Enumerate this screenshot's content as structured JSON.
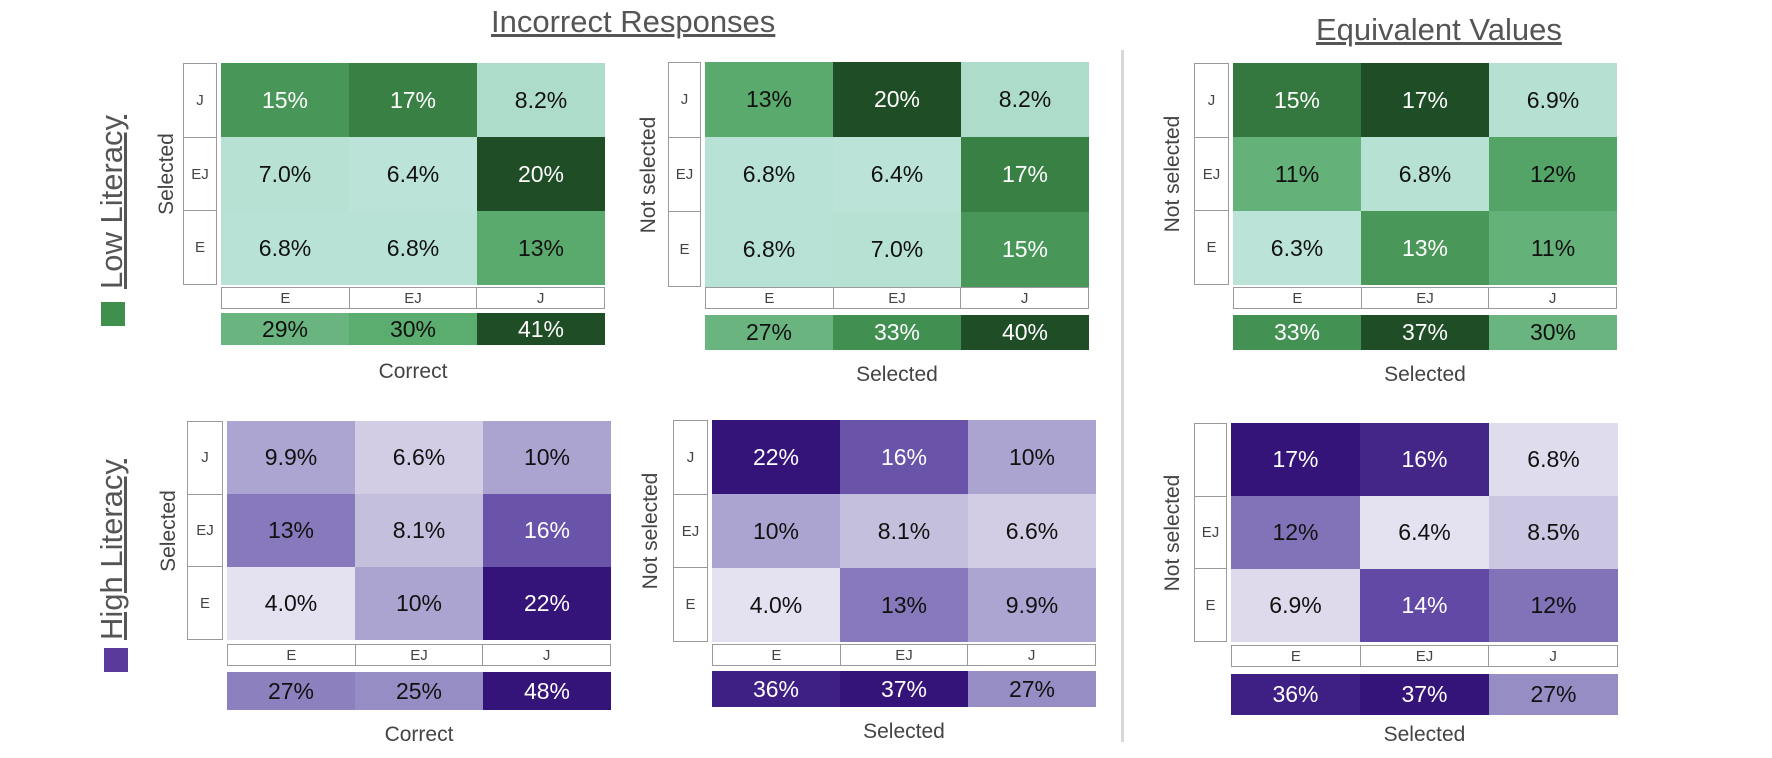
{
  "titles": {
    "incorrect": "Incorrect Responses",
    "equivalent": "Equivalent Values"
  },
  "row_groups": {
    "low": {
      "label": "Low Literacy",
      "color": "#3f8f4d"
    },
    "high": {
      "label": "High Literacy",
      "color": "#5a3a9a"
    }
  },
  "chart_data": [
    {
      "type": "heatmap",
      "id": "low-incorrect-a",
      "group": "Low Literacy",
      "section": "Incorrect Responses",
      "palette": "green",
      "ylabel": "Selected",
      "xlabel": "Correct",
      "rows": [
        "J",
        "EJ",
        "E"
      ],
      "cols": [
        "E",
        "EJ",
        "J"
      ],
      "values": [
        [
          15,
          17,
          8.2
        ],
        [
          7.0,
          6.4,
          20
        ],
        [
          6.8,
          6.8,
          13
        ]
      ],
      "labels": [
        [
          "15%",
          "17%",
          "8.2%"
        ],
        [
          "7.0%",
          "6.4%",
          "20%"
        ],
        [
          "6.8%",
          "6.8%",
          "13%"
        ]
      ],
      "totals": [
        29,
        30,
        41
      ],
      "total_labels": [
        "29%",
        "30%",
        "41%"
      ]
    },
    {
      "type": "heatmap",
      "id": "low-incorrect-b",
      "group": "Low Literacy",
      "section": "Incorrect Responses",
      "palette": "green",
      "ylabel": "Not selected",
      "xlabel": "Selected",
      "rows": [
        "J",
        "EJ",
        "E"
      ],
      "cols": [
        "E",
        "EJ",
        "J"
      ],
      "values": [
        [
          13,
          20,
          8.2
        ],
        [
          6.8,
          6.4,
          17
        ],
        [
          6.8,
          7.0,
          15
        ]
      ],
      "labels": [
        [
          "13%",
          "20%",
          "8.2%"
        ],
        [
          "6.8%",
          "6.4%",
          "17%"
        ],
        [
          "6.8%",
          "7.0%",
          "15%"
        ]
      ],
      "totals": [
        27,
        33,
        40
      ],
      "total_labels": [
        "27%",
        "33%",
        "40%"
      ]
    },
    {
      "type": "heatmap",
      "id": "low-equivalent",
      "group": "Low Literacy",
      "section": "Equivalent Values",
      "palette": "green",
      "ylabel": "Not selected",
      "xlabel": "Selected",
      "rows": [
        "J",
        "EJ",
        "E"
      ],
      "cols": [
        "E",
        "EJ",
        "J"
      ],
      "values": [
        [
          15,
          17,
          6.9
        ],
        [
          11,
          6.8,
          12
        ],
        [
          6.3,
          13,
          11
        ]
      ],
      "labels": [
        [
          "15%",
          "17%",
          "6.9%"
        ],
        [
          "11%",
          "6.8%",
          "12%"
        ],
        [
          "6.3%",
          "13%",
          "11%"
        ]
      ],
      "totals": [
        33,
        37,
        30
      ],
      "total_labels": [
        "33%",
        "37%",
        "30%"
      ]
    },
    {
      "type": "heatmap",
      "id": "high-incorrect-a",
      "group": "High Literacy",
      "section": "Incorrect Responses",
      "palette": "purple",
      "ylabel": "Selected",
      "xlabel": "Correct",
      "rows": [
        "J",
        "EJ",
        "E"
      ],
      "cols": [
        "E",
        "EJ",
        "J"
      ],
      "values": [
        [
          9.9,
          6.6,
          10
        ],
        [
          13,
          8.1,
          16
        ],
        [
          4.0,
          10,
          22
        ]
      ],
      "labels": [
        [
          "9.9%",
          "6.6%",
          "10%"
        ],
        [
          "13%",
          "8.1%",
          "16%"
        ],
        [
          "4.0%",
          "10%",
          "22%"
        ]
      ],
      "totals": [
        27,
        25,
        48
      ],
      "total_labels": [
        "27%",
        "25%",
        "48%"
      ]
    },
    {
      "type": "heatmap",
      "id": "high-incorrect-b",
      "group": "High Literacy",
      "section": "Incorrect Responses",
      "palette": "purple",
      "ylabel": "Not selected",
      "xlabel": "Selected",
      "rows": [
        "J",
        "EJ",
        "E"
      ],
      "cols": [
        "E",
        "EJ",
        "J"
      ],
      "values": [
        [
          22,
          16,
          10
        ],
        [
          10,
          8.1,
          6.6
        ],
        [
          4.0,
          13,
          9.9
        ]
      ],
      "labels": [
        [
          "22%",
          "16%",
          "10%"
        ],
        [
          "10%",
          "8.1%",
          "6.6%"
        ],
        [
          "4.0%",
          "13%",
          "9.9%"
        ]
      ],
      "totals": [
        36,
        37,
        27
      ],
      "total_labels": [
        "36%",
        "37%",
        "27%"
      ]
    },
    {
      "type": "heatmap",
      "id": "high-equivalent",
      "group": "High Literacy",
      "section": "Equivalent Values",
      "palette": "purple",
      "ylabel": "Not selected",
      "xlabel": "Selected",
      "rows": [
        "",
        "EJ",
        "E"
      ],
      "cols": [
        "E",
        "EJ",
        "J"
      ],
      "values": [
        [
          17,
          16,
          6.8
        ],
        [
          12,
          6.4,
          8.5
        ],
        [
          6.9,
          14,
          12
        ]
      ],
      "labels": [
        [
          "17%",
          "16%",
          "6.8%"
        ],
        [
          "12%",
          "6.4%",
          "8.5%"
        ],
        [
          "6.9%",
          "14%",
          "12%"
        ]
      ],
      "totals": [
        36,
        37,
        27
      ],
      "total_labels": [
        "36%",
        "37%",
        "27%"
      ]
    }
  ]
}
